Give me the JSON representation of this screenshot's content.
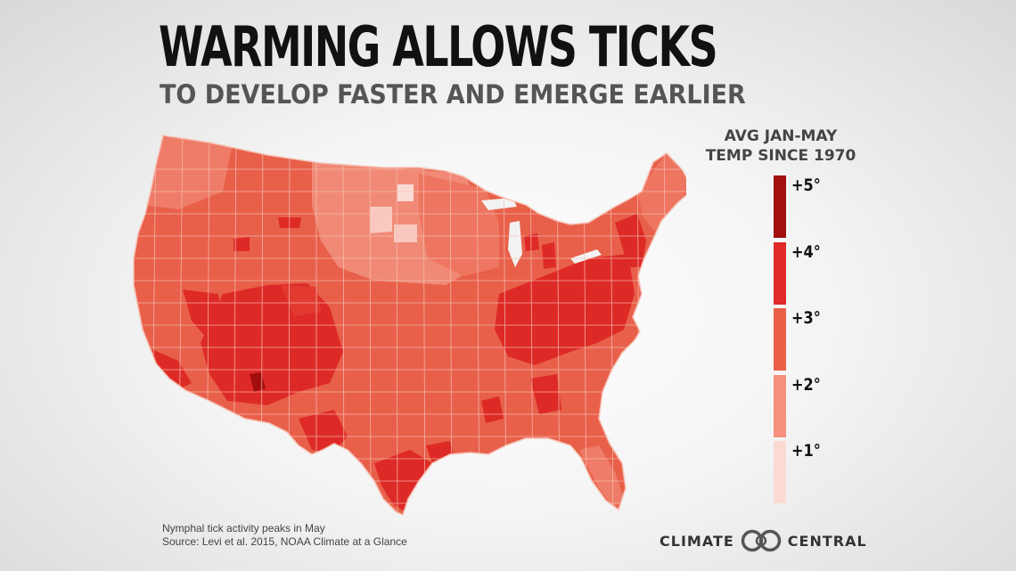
{
  "title": "WARMING ALLOWS TICKS",
  "subtitle": "TO DEVELOP FASTER AND EMERGE EARLIER",
  "legend": {
    "title_line1": "AVG JAN-MAY",
    "title_line2": "TEMP SINCE 1970",
    "items": [
      {
        "label": "+5°",
        "color": "#a30e0e"
      },
      {
        "label": "+4°",
        "color": "#e12a2a"
      },
      {
        "label": "+3°",
        "color": "#ea5f47"
      },
      {
        "label": "+2°",
        "color": "#f4907d"
      },
      {
        "label": "+1°",
        "color": "#fadad3"
      }
    ]
  },
  "footnote": {
    "line1": "Nymphal tick activity peaks in May",
    "line2": "Source: Levi et al. 2015, NOAA Climate at a Glance"
  },
  "brand": {
    "left": "CLIMATE",
    "right": "CENTRAL"
  },
  "map": {
    "base_color": "#e8604a",
    "border_color": "#f6c2b6"
  }
}
